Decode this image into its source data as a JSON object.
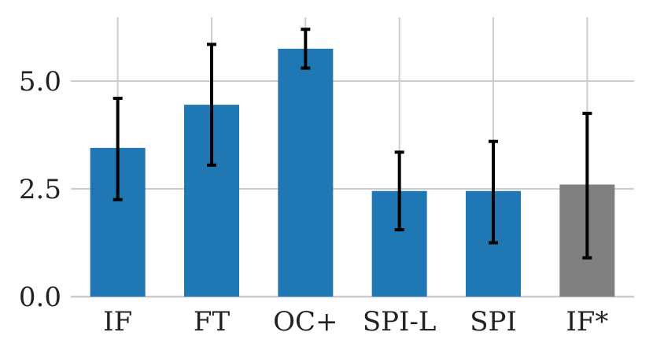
{
  "chart_data": {
    "type": "bar",
    "categories": [
      "IF",
      "FT",
      "OC+",
      "SPI-L",
      "SPI",
      "IF*"
    ],
    "values": [
      3.45,
      4.45,
      5.75,
      2.45,
      2.45,
      2.6
    ],
    "error_low": [
      2.25,
      3.05,
      5.3,
      1.55,
      1.25,
      0.9
    ],
    "error_high": [
      4.6,
      5.85,
      6.2,
      3.35,
      3.6,
      4.25
    ],
    "bar_colors": [
      "#1f77b4",
      "#1f77b4",
      "#1f77b4",
      "#1f77b4",
      "#1f77b4",
      "#808080"
    ],
    "title": "",
    "xlabel": "",
    "ylabel": "",
    "ylim": [
      0,
      6.5
    ],
    "yticks": [
      0.0,
      2.5,
      5.0
    ],
    "ytick_labels": [
      "0.0",
      "2.5",
      "5.0"
    ],
    "grid": true
  }
}
